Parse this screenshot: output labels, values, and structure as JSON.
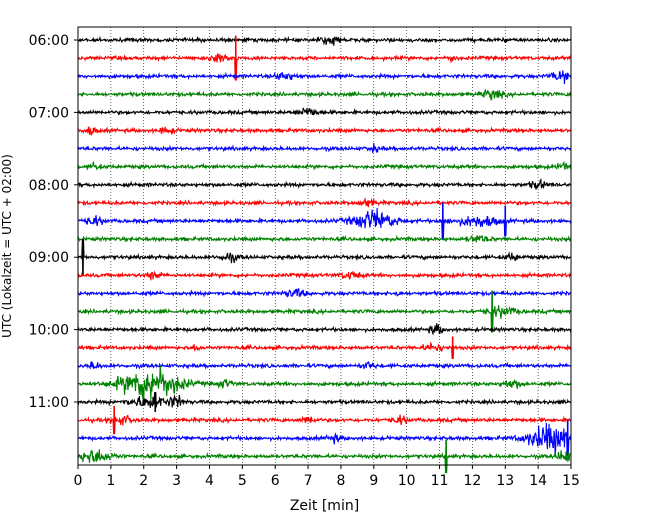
{
  "chart_data": {
    "type": "line",
    "title": "",
    "xlabel": "Zeit  [min]",
    "ylabel": "UTC (Lokalzeit = UTC + 02:00)",
    "xlim": [
      0,
      15
    ],
    "x_ticks": [
      0,
      1,
      2,
      3,
      4,
      5,
      6,
      7,
      8,
      9,
      10,
      11,
      12,
      13,
      14,
      15
    ],
    "x_tick_labels": [
      "0",
      "1",
      "2",
      "3",
      "4",
      "5",
      "6",
      "7",
      "8",
      "9",
      "10",
      "11",
      "12",
      "13",
      "14",
      "15"
    ],
    "y_tick_labels": [
      "06:00",
      "07:00",
      "08:00",
      "09:00",
      "10:00",
      "11:00"
    ],
    "y_tick_trace_index": [
      0,
      4,
      8,
      12,
      16,
      20
    ],
    "trace_interval_minutes": 15,
    "grid": {
      "vertical": true,
      "style": "dotted"
    },
    "color_cycle": [
      "#000000",
      "#ff0000",
      "#0000ff",
      "#008000"
    ],
    "traces": [
      {
        "start": "06:00",
        "color": "#000000",
        "events": [
          {
            "t": 7.7,
            "amp": 0.35,
            "dur": 0.6,
            "type": "burst"
          }
        ]
      },
      {
        "start": "06:15",
        "color": "#ff0000",
        "events": [
          {
            "t": 4.8,
            "amp": 1.6,
            "dur": 0.05,
            "type": "spike"
          },
          {
            "t": 4.3,
            "amp": 0.4,
            "dur": 0.6,
            "type": "burst"
          },
          {
            "t": 11.4,
            "amp": 0.4,
            "dur": 0.2,
            "type": "burst"
          }
        ]
      },
      {
        "start": "06:30",
        "color": "#0000ff",
        "events": [
          {
            "t": 6.3,
            "amp": 0.35,
            "dur": 0.6,
            "type": "burst"
          },
          {
            "t": 14.7,
            "amp": 0.45,
            "dur": 0.6,
            "type": "burst"
          }
        ]
      },
      {
        "start": "06:45",
        "color": "#008000",
        "events": [
          {
            "t": 12.6,
            "amp": 0.4,
            "dur": 0.6,
            "type": "burst"
          }
        ]
      },
      {
        "start": "07:00",
        "color": "#000000",
        "events": [
          {
            "t": 7.0,
            "amp": 0.4,
            "dur": 0.6,
            "type": "burst"
          }
        ]
      },
      {
        "start": "07:15",
        "color": "#ff0000",
        "events": [
          {
            "t": 0.4,
            "amp": 0.35,
            "dur": 0.3,
            "type": "burst"
          },
          {
            "t": 2.7,
            "amp": 0.3,
            "dur": 0.4,
            "type": "burst"
          }
        ]
      },
      {
        "start": "07:30",
        "color": "#0000ff",
        "events": [
          {
            "t": 9.0,
            "amp": 0.3,
            "dur": 0.3,
            "type": "burst"
          }
        ]
      },
      {
        "start": "07:45",
        "color": "#008000",
        "events": [
          {
            "t": 0.5,
            "amp": 0.3,
            "dur": 0.3,
            "type": "burst"
          },
          {
            "t": 14.8,
            "amp": 0.3,
            "dur": 0.4,
            "type": "burst"
          }
        ]
      },
      {
        "start": "08:00",
        "color": "#000000",
        "events": [
          {
            "t": 14.0,
            "amp": 0.35,
            "dur": 0.5,
            "type": "burst"
          }
        ]
      },
      {
        "start": "08:15",
        "color": "#ff0000",
        "events": [
          {
            "t": 8.8,
            "amp": 0.3,
            "dur": 0.5,
            "type": "burst"
          }
        ]
      },
      {
        "start": "08:30",
        "color": "#0000ff",
        "events": [
          {
            "t": 9.0,
            "amp": 0.9,
            "dur": 1.2,
            "type": "burst"
          },
          {
            "t": 11.1,
            "amp": 1.3,
            "dur": 0.05,
            "type": "spike"
          },
          {
            "t": 12.2,
            "amp": 0.5,
            "dur": 1.2,
            "type": "burst"
          },
          {
            "t": 13.0,
            "amp": 1.1,
            "dur": 0.05,
            "type": "spike"
          },
          {
            "t": 0.5,
            "amp": 0.4,
            "dur": 0.5,
            "type": "burst"
          }
        ]
      },
      {
        "start": "08:45",
        "color": "#008000",
        "events": [
          {
            "t": 12.2,
            "amp": 0.3,
            "dur": 0.6,
            "type": "burst"
          }
        ]
      },
      {
        "start": "09:00",
        "color": "#000000",
        "events": [
          {
            "t": 0.15,
            "amp": 1.3,
            "dur": 0.05,
            "type": "spike"
          },
          {
            "t": 4.6,
            "amp": 0.35,
            "dur": 0.5,
            "type": "burst"
          },
          {
            "t": 13.2,
            "amp": 0.3,
            "dur": 0.4,
            "type": "burst"
          }
        ]
      },
      {
        "start": "09:15",
        "color": "#ff0000",
        "events": [
          {
            "t": 2.3,
            "amp": 0.35,
            "dur": 0.4,
            "type": "burst"
          },
          {
            "t": 8.3,
            "amp": 0.3,
            "dur": 0.6,
            "type": "burst"
          }
        ]
      },
      {
        "start": "09:30",
        "color": "#0000ff",
        "events": [
          {
            "t": 6.6,
            "amp": 0.35,
            "dur": 0.6,
            "type": "burst"
          },
          {
            "t": 9.7,
            "amp": 0.3,
            "dur": 0.2,
            "type": "burst"
          }
        ]
      },
      {
        "start": "09:45",
        "color": "#008000",
        "events": [
          {
            "t": 12.6,
            "amp": 1.5,
            "dur": 0.05,
            "type": "spike"
          },
          {
            "t": 12.9,
            "amp": 0.45,
            "dur": 0.8,
            "type": "burst"
          }
        ]
      },
      {
        "start": "10:00",
        "color": "#000000",
        "events": [
          {
            "t": 10.9,
            "amp": 0.4,
            "dur": 0.4,
            "type": "burst"
          }
        ]
      },
      {
        "start": "10:15",
        "color": "#ff0000",
        "events": [
          {
            "t": 11.4,
            "amp": 0.8,
            "dur": 0.05,
            "type": "spike"
          },
          {
            "t": 3.6,
            "amp": 0.3,
            "dur": 0.2,
            "type": "burst"
          },
          {
            "t": 10.8,
            "amp": 0.3,
            "dur": 0.6,
            "type": "burst"
          }
        ]
      },
      {
        "start": "10:30",
        "color": "#0000ff",
        "events": [
          {
            "t": 0.5,
            "amp": 0.35,
            "dur": 0.3,
            "type": "burst"
          },
          {
            "t": 8.8,
            "amp": 0.3,
            "dur": 0.4,
            "type": "burst"
          }
        ]
      },
      {
        "start": "10:45",
        "color": "#008000",
        "events": [
          {
            "t": 2.2,
            "amp": 1.6,
            "dur": 1.7,
            "type": "burst"
          },
          {
            "t": 4.5,
            "amp": 0.35,
            "dur": 0.4,
            "type": "burst"
          },
          {
            "t": 13.2,
            "amp": 0.35,
            "dur": 0.6,
            "type": "burst"
          }
        ]
      },
      {
        "start": "11:00",
        "color": "#000000",
        "events": [
          {
            "t": 2.2,
            "amp": 0.5,
            "dur": 1.2,
            "type": "burst"
          },
          {
            "t": 3.0,
            "amp": 0.45,
            "dur": 0.4,
            "type": "burst"
          },
          {
            "t": 2.35,
            "amp": 0.7,
            "dur": 0.05,
            "type": "spike"
          }
        ]
      },
      {
        "start": "11:15",
        "color": "#ff0000",
        "events": [
          {
            "t": 1.1,
            "amp": 1.0,
            "dur": 0.05,
            "type": "spike"
          },
          {
            "t": 1.3,
            "amp": 0.4,
            "dur": 0.6,
            "type": "burst"
          },
          {
            "t": 7.0,
            "amp": 0.35,
            "dur": 0.4,
            "type": "burst"
          },
          {
            "t": 9.8,
            "amp": 0.35,
            "dur": 0.4,
            "type": "burst"
          }
        ]
      },
      {
        "start": "11:30",
        "color": "#0000ff",
        "events": [
          {
            "t": 7.8,
            "amp": 0.3,
            "dur": 0.4,
            "type": "burst"
          },
          {
            "t": 14.4,
            "amp": 1.2,
            "dur": 1.4,
            "type": "burst"
          },
          {
            "t": 14.9,
            "amp": 1.3,
            "dur": 0.05,
            "type": "spike"
          }
        ]
      },
      {
        "start": "11:45",
        "color": "#008000",
        "events": [
          {
            "t": 0.5,
            "amp": 0.6,
            "dur": 1.0,
            "type": "burst"
          },
          {
            "t": 11.2,
            "amp": 1.2,
            "dur": 0.05,
            "type": "spike"
          },
          {
            "t": 14.8,
            "amp": 0.6,
            "dur": 0.4,
            "type": "burst"
          }
        ]
      }
    ]
  }
}
